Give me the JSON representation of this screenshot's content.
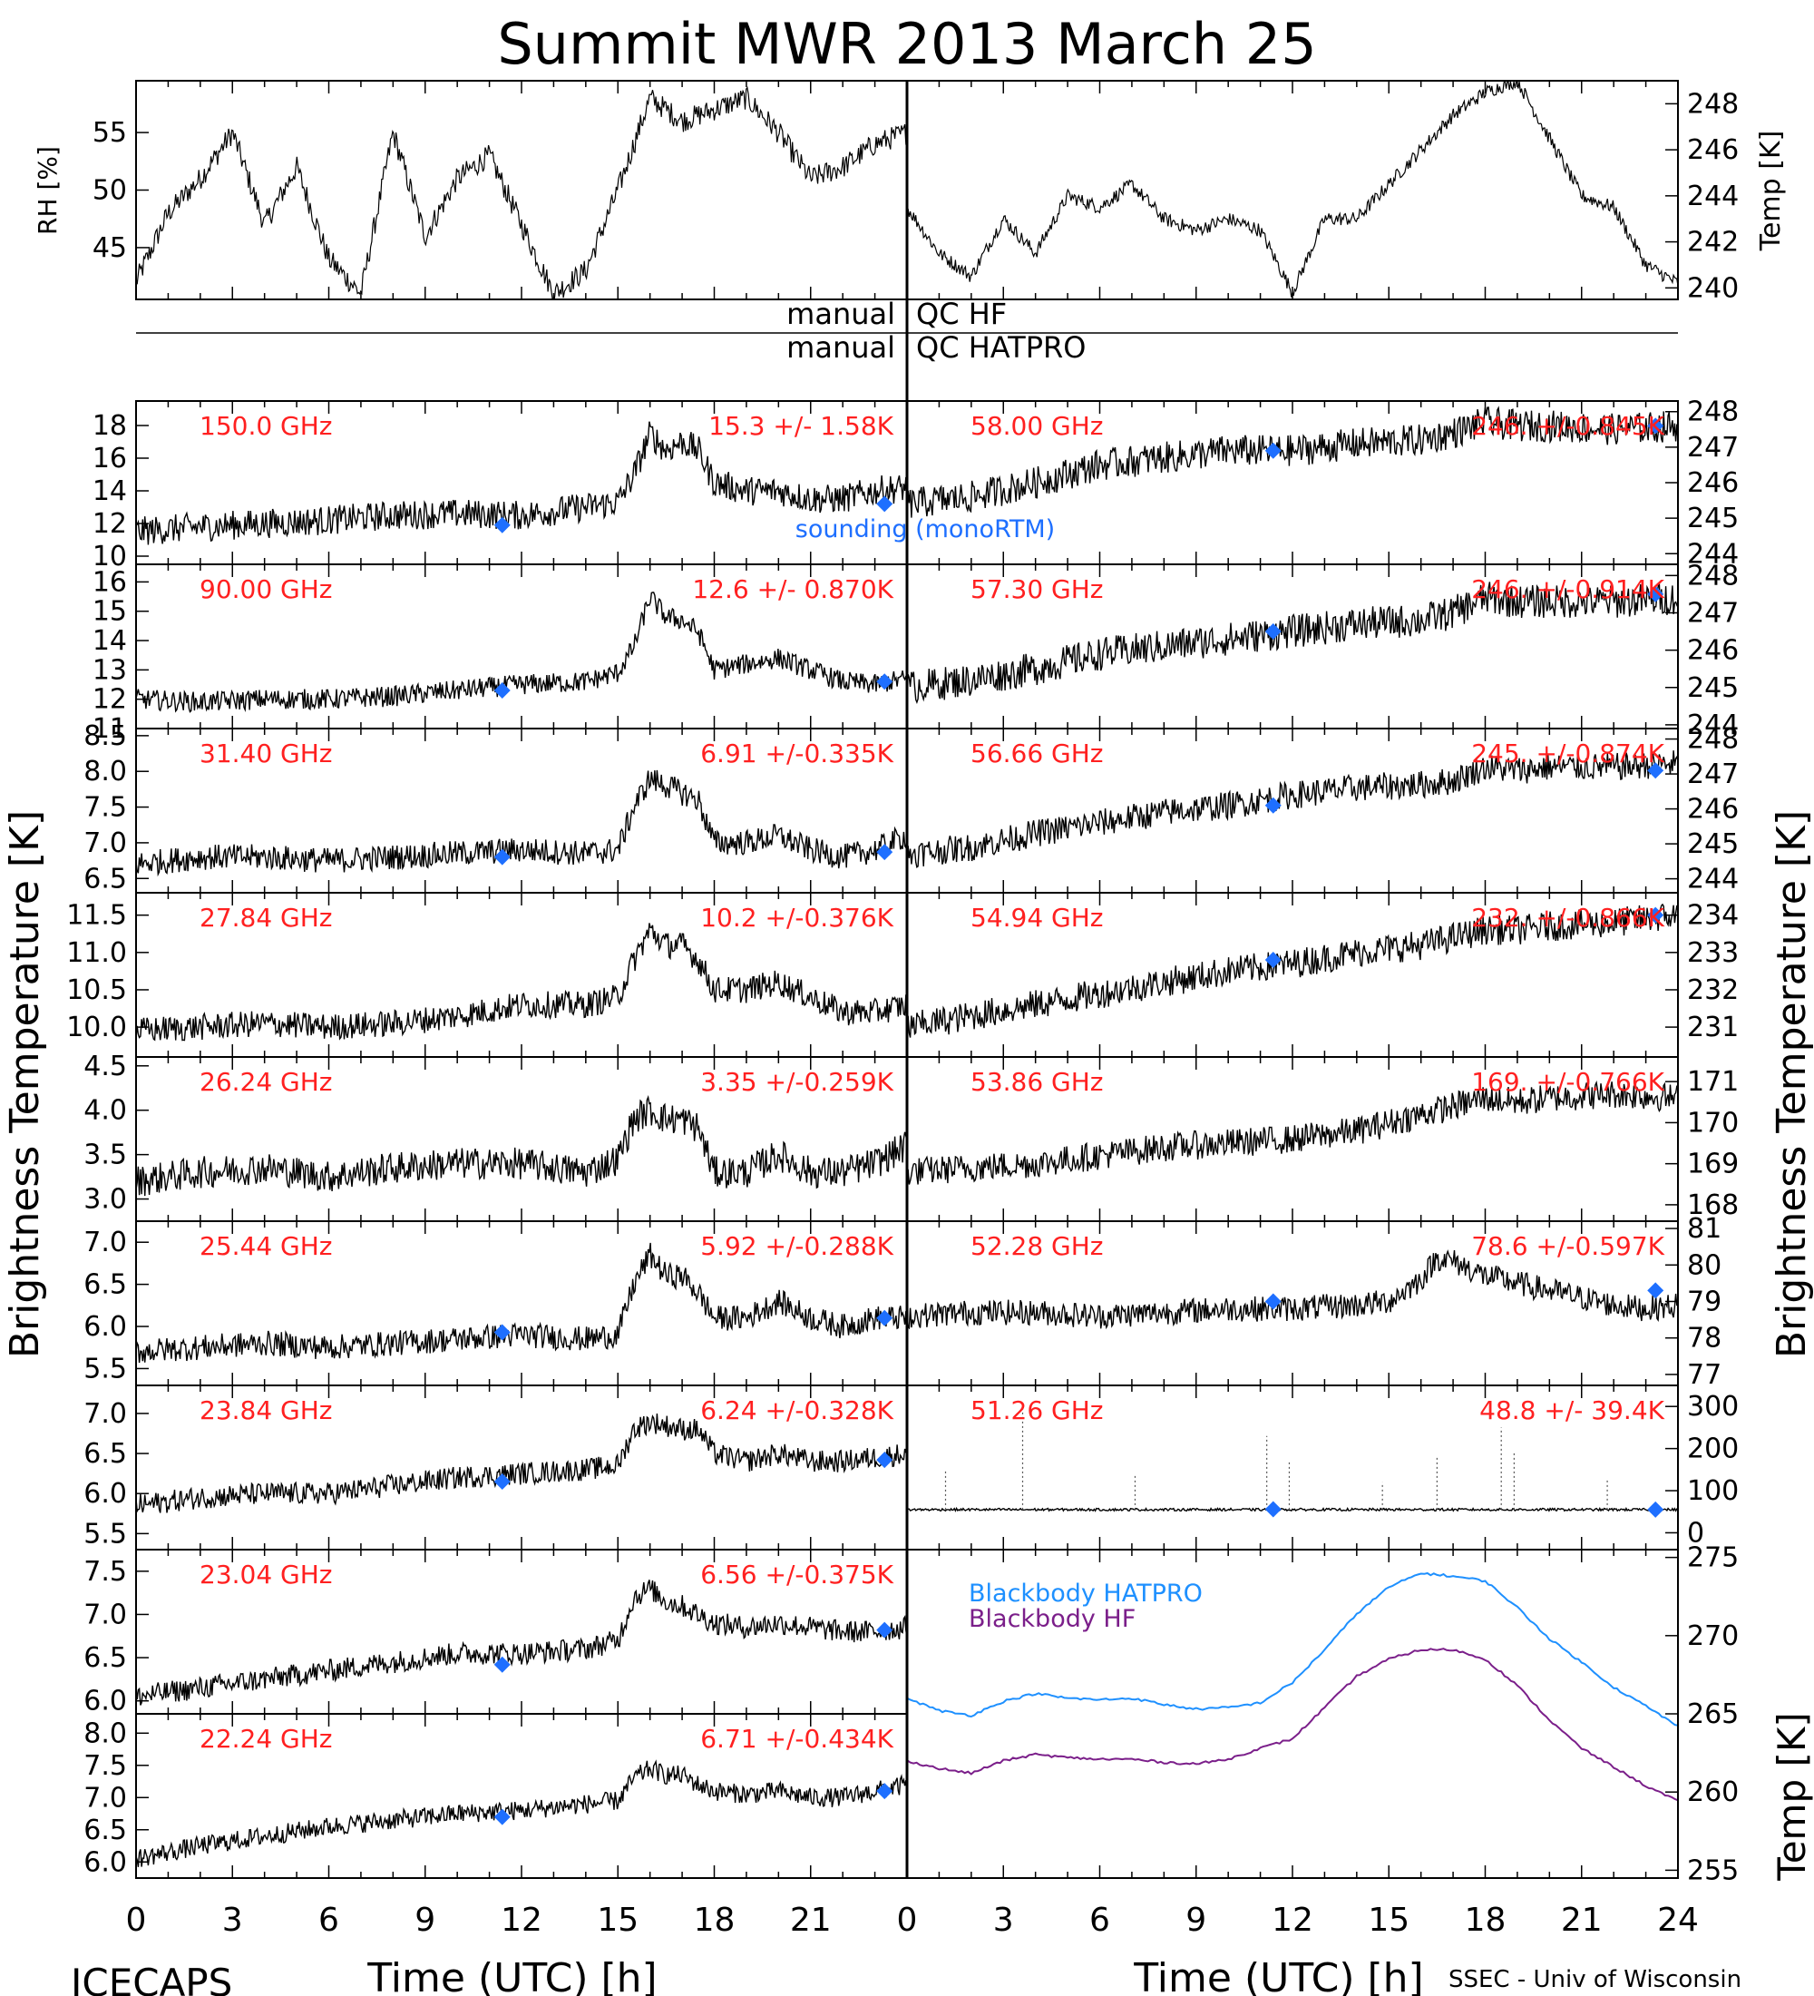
{
  "title": "Summit MWR 2013 March 25",
  "footer": {
    "left": "ICECAPS",
    "right": "SSEC - Univ of Wisconsin"
  },
  "x_axis": {
    "label": "Time (UTC) [h]",
    "ticks": [
      "0",
      "3",
      "6",
      "9",
      "12",
      "15",
      "18",
      "21",
      "24"
    ],
    "range": [
      0,
      24
    ]
  },
  "qc": {
    "label_left": "manual",
    "label_hf": "QC HF",
    "label_hatpro": "QC HATPRO"
  },
  "left_axis_label": "Brightness Temperature [K]",
  "right_axis_label": "Brightness Temperature [K]",
  "bb_axis_label": "Temp [K]",
  "sounding_label": "sounding (monoRTM)",
  "colors": {
    "text_red": "#ff2020",
    "sounding": "#1e6fff",
    "bb_hatpro": "#1e90ff",
    "bb_hf": "#7b1f8a",
    "trace": "#000000"
  },
  "chart_data": [
    {
      "type": "line",
      "id": "met_rh",
      "ylabel": "RH [%]",
      "yticks": [
        "45",
        "50",
        "55"
      ],
      "ylim": [
        40.5,
        59.5
      ],
      "x": [
        0,
        1,
        2,
        3,
        4,
        5,
        6,
        7,
        8,
        9,
        10,
        11,
        12,
        13,
        14,
        15,
        16,
        17,
        18,
        19,
        20,
        21,
        22,
        23,
        24
      ],
      "values": [
        42,
        48,
        51,
        55,
        47,
        52,
        44,
        41,
        55,
        46,
        51,
        53,
        47,
        41,
        43,
        50,
        58,
        56,
        57,
        58,
        55,
        51,
        52,
        54,
        55
      ]
    },
    {
      "type": "line",
      "id": "met_temp",
      "ylabel": "Temp [K]",
      "yticks": [
        "240",
        "242",
        "244",
        "246",
        "248"
      ],
      "ylim": [
        239.5,
        249.0
      ],
      "x": [
        0,
        1,
        2,
        3,
        4,
        5,
        6,
        7,
        8,
        9,
        10,
        11,
        12,
        13,
        14,
        15,
        16,
        17,
        18,
        19,
        20,
        21,
        22,
        23,
        24
      ],
      "values": [
        243.5,
        241.5,
        240.5,
        243,
        241.5,
        244,
        243.5,
        244.5,
        243,
        242.5,
        243,
        242.5,
        239.8,
        243,
        243,
        244.5,
        246,
        247.5,
        248.5,
        249,
        246.5,
        244,
        243.5,
        241,
        240.2
      ]
    },
    {
      "type": "line",
      "id": "l150",
      "side": "left",
      "freq": "150.0 GHz",
      "stat": "15.3 +/- 1.58K",
      "yticks": [
        "10",
        "12",
        "14",
        "16",
        "18"
      ],
      "ylim": [
        9.5,
        19.5
      ],
      "noise": 0.9,
      "x": [
        0,
        2,
        4,
        6,
        8,
        10,
        12,
        14,
        15,
        15.5,
        16,
        16.5,
        17,
        17.5,
        18,
        19,
        20,
        21,
        22,
        23,
        24
      ],
      "values": [
        11.5,
        11.8,
        12,
        12.2,
        12.5,
        12.6,
        12.5,
        13,
        13.3,
        15,
        17.5,
        16.5,
        17,
        16.5,
        14.5,
        14,
        14,
        13.5,
        13.5,
        14,
        14.2
      ],
      "sounding": [
        [
          11.4,
          11.9
        ],
        [
          23.3,
          13.2
        ]
      ]
    },
    {
      "type": "line",
      "id": "l90",
      "side": "left",
      "freq": "90.00 GHz",
      "stat": "12.6 +/- 0.870K",
      "yticks": [
        "11",
        "12",
        "13",
        "14",
        "15",
        "16"
      ],
      "ylim": [
        11.0,
        16.6
      ],
      "noise": 0.35,
      "x": [
        0,
        2,
        4,
        6,
        8,
        10,
        12,
        14,
        15,
        15.5,
        16,
        16.5,
        17,
        17.5,
        18,
        19,
        20,
        21,
        22,
        23,
        24
      ],
      "values": [
        12,
        11.9,
        12,
        12,
        12.1,
        12.3,
        12.5,
        12.6,
        12.9,
        13.8,
        15.5,
        14.8,
        14.7,
        14.3,
        13,
        13.2,
        13.4,
        13,
        12.6,
        12.5,
        12.7
      ],
      "sounding": [
        [
          11.4,
          12.3
        ],
        [
          23.3,
          12.6
        ]
      ]
    },
    {
      "type": "line",
      "id": "l3140",
      "side": "left",
      "freq": "31.40 GHz",
      "stat": "6.91 +/-0.335K",
      "yticks": [
        "6.5",
        "7.0",
        "7.5",
        "8.0",
        "8.5"
      ],
      "ylim": [
        6.3,
        8.6
      ],
      "noise": 0.18,
      "x": [
        0,
        2,
        4,
        6,
        8,
        10,
        12,
        14,
        15,
        15.5,
        16,
        16.5,
        17,
        17.5,
        18,
        19,
        20,
        21,
        22,
        23,
        24
      ],
      "values": [
        6.7,
        6.8,
        6.8,
        6.75,
        6.8,
        6.85,
        6.9,
        6.85,
        6.9,
        7.5,
        7.9,
        7.8,
        7.7,
        7.6,
        7.0,
        7.0,
        7.1,
        6.9,
        6.8,
        6.9,
        7.1
      ],
      "sounding": [
        [
          11.4,
          6.8
        ],
        [
          23.3,
          6.87
        ]
      ]
    },
    {
      "type": "line",
      "id": "l2784",
      "side": "left",
      "freq": "27.84 GHz",
      "stat": "10.2 +/-0.376K",
      "yticks": [
        "10.0",
        "10.5",
        "11.0",
        "11.5"
      ],
      "ylim": [
        9.6,
        11.8
      ],
      "noise": 0.18,
      "x": [
        0,
        2,
        4,
        6,
        8,
        10,
        12,
        14,
        15,
        15.5,
        16,
        16.5,
        17,
        17.5,
        18,
        19,
        20,
        21,
        22,
        23,
        24
      ],
      "values": [
        9.95,
        10,
        10.05,
        10,
        10.05,
        10.15,
        10.3,
        10.3,
        10.4,
        10.9,
        11.3,
        11.1,
        11.1,
        10.9,
        10.5,
        10.5,
        10.6,
        10.4,
        10.2,
        10.2,
        10.3
      ],
      "sounding": []
    },
    {
      "type": "line",
      "id": "l2624",
      "side": "left",
      "freq": "26.24 GHz",
      "stat": "3.35 +/-0.259K",
      "yticks": [
        "3.0",
        "3.5",
        "4.0",
        "4.5"
      ],
      "ylim": [
        2.75,
        4.6
      ],
      "noise": 0.18,
      "x": [
        0,
        2,
        4,
        6,
        8,
        10,
        12,
        14,
        15,
        15.5,
        16,
        16.5,
        17,
        17.5,
        18,
        19,
        20,
        21,
        22,
        23,
        24
      ],
      "values": [
        3.2,
        3.3,
        3.35,
        3.25,
        3.35,
        3.4,
        3.4,
        3.3,
        3.45,
        3.9,
        4.0,
        3.9,
        3.9,
        3.8,
        3.3,
        3.3,
        3.5,
        3.3,
        3.3,
        3.4,
        3.6
      ],
      "sounding": []
    },
    {
      "type": "line",
      "id": "l2544",
      "side": "left",
      "freq": "25.44 GHz",
      "stat": "5.92 +/-0.288K",
      "yticks": [
        "5.5",
        "6.0",
        "6.5",
        "7.0"
      ],
      "ylim": [
        5.3,
        7.25
      ],
      "noise": 0.15,
      "x": [
        0,
        2,
        4,
        6,
        8,
        10,
        12,
        14,
        15,
        15.5,
        16,
        16.5,
        17,
        17.5,
        18,
        19,
        20,
        21,
        22,
        23,
        24
      ],
      "values": [
        5.7,
        5.75,
        5.8,
        5.75,
        5.8,
        5.85,
        5.9,
        5.85,
        5.9,
        6.5,
        6.85,
        6.6,
        6.6,
        6.4,
        6.1,
        6.1,
        6.3,
        6.1,
        6.0,
        6.1,
        6.1
      ],
      "sounding": [
        [
          11.4,
          5.93
        ],
        [
          23.3,
          6.1
        ]
      ]
    },
    {
      "type": "line",
      "id": "l2384",
      "side": "left",
      "freq": "23.84 GHz",
      "stat": "6.24 +/-0.328K",
      "yticks": [
        "5.5",
        "6.0",
        "6.5",
        "7.0"
      ],
      "ylim": [
        5.3,
        7.35
      ],
      "noise": 0.14,
      "x": [
        0,
        2,
        4,
        6,
        8,
        10,
        12,
        14,
        15,
        15.5,
        16,
        16.5,
        17,
        17.5,
        18,
        19,
        20,
        21,
        22,
        23,
        24
      ],
      "values": [
        5.85,
        5.95,
        6.0,
        6.0,
        6.1,
        6.2,
        6.25,
        6.3,
        6.35,
        6.8,
        6.9,
        6.85,
        6.8,
        6.8,
        6.5,
        6.4,
        6.5,
        6.4,
        6.4,
        6.45,
        6.5
      ],
      "sounding": [
        [
          11.4,
          6.15
        ],
        [
          23.3,
          6.42
        ]
      ]
    },
    {
      "type": "line",
      "id": "l2304",
      "side": "left",
      "freq": "23.04 GHz",
      "stat": "6.56 +/-0.375K",
      "yticks": [
        "6.0",
        "6.5",
        "7.0",
        "7.5"
      ],
      "ylim": [
        5.85,
        7.75
      ],
      "noise": 0.13,
      "x": [
        0,
        2,
        4,
        6,
        8,
        10,
        12,
        14,
        15,
        15.5,
        16,
        16.5,
        17,
        17.5,
        18,
        19,
        20,
        21,
        22,
        23,
        24
      ],
      "values": [
        6.05,
        6.15,
        6.25,
        6.35,
        6.45,
        6.55,
        6.55,
        6.6,
        6.7,
        7.2,
        7.3,
        7.15,
        7.1,
        7.0,
        6.9,
        6.85,
        6.9,
        6.85,
        6.8,
        6.8,
        6.85
      ],
      "sounding": [
        [
          11.4,
          6.42
        ],
        [
          23.3,
          6.82
        ]
      ]
    },
    {
      "type": "line",
      "id": "l2224",
      "side": "left",
      "freq": "22.24 GHz",
      "stat": "6.71 +/-0.434K",
      "yticks": [
        "6.0",
        "6.5",
        "7.0",
        "7.5",
        "8.0"
      ],
      "ylim": [
        5.75,
        8.3
      ],
      "noise": 0.15,
      "x": [
        0,
        2,
        4,
        6,
        8,
        10,
        12,
        14,
        15,
        15.5,
        16,
        16.5,
        17,
        17.5,
        18,
        19,
        20,
        21,
        22,
        23,
        24
      ],
      "values": [
        6.05,
        6.25,
        6.4,
        6.55,
        6.65,
        6.75,
        6.8,
        6.9,
        6.95,
        7.3,
        7.45,
        7.35,
        7.35,
        7.2,
        7.1,
        7.05,
        7.1,
        7.0,
        7.0,
        7.1,
        7.2
      ],
      "sounding": [
        [
          11.4,
          6.7
        ],
        [
          23.3,
          7.1
        ]
      ]
    },
    {
      "type": "line",
      "id": "r5800",
      "side": "right",
      "freq": "58.00 GHz",
      "stat": "246. +/-0.845K",
      "yticks": [
        "244",
        "245",
        "246",
        "247",
        "248"
      ],
      "ylim": [
        243.7,
        248.3
      ],
      "noise": 0.45,
      "x": [
        0,
        2,
        4,
        6,
        8,
        10,
        12,
        14,
        16,
        17,
        18,
        19,
        20,
        22,
        24
      ],
      "values": [
        245.4,
        245.6,
        246.0,
        246.5,
        246.7,
        246.9,
        246.9,
        247.1,
        247.2,
        247.4,
        247.7,
        247.6,
        247.6,
        247.5,
        247.6
      ],
      "sounding": [
        [
          11.4,
          246.9
        ],
        [
          23.3,
          247.6
        ]
      ]
    },
    {
      "type": "line",
      "id": "r5730",
      "side": "right",
      "freq": "57.30 GHz",
      "stat": "246. +/-0.914K",
      "yticks": [
        "244",
        "245",
        "246",
        "247",
        "248"
      ],
      "ylim": [
        243.9,
        248.3
      ],
      "noise": 0.45,
      "x": [
        0,
        2,
        4,
        6,
        8,
        10,
        12,
        14,
        16,
        17,
        18,
        19,
        20,
        22,
        24
      ],
      "values": [
        245.0,
        245.2,
        245.5,
        245.9,
        246.1,
        246.3,
        246.5,
        246.7,
        246.8,
        247.0,
        247.4,
        247.3,
        247.3,
        247.3,
        247.4
      ],
      "sounding": [
        [
          11.4,
          246.5
        ],
        [
          23.3,
          247.5
        ]
      ]
    },
    {
      "type": "line",
      "id": "r5666",
      "side": "right",
      "freq": "56.66 GHz",
      "stat": "245. +/-0.874K",
      "yticks": [
        "244",
        "245",
        "246",
        "247",
        "248"
      ],
      "ylim": [
        243.6,
        248.3
      ],
      "noise": 0.4,
      "x": [
        0,
        2,
        4,
        6,
        8,
        10,
        12,
        14,
        16,
        17,
        18,
        19,
        20,
        22,
        24
      ],
      "values": [
        244.7,
        244.9,
        245.3,
        245.6,
        245.9,
        246.1,
        246.4,
        246.6,
        246.7,
        246.8,
        247.2,
        247.1,
        247.2,
        247.2,
        247.3
      ],
      "sounding": [
        [
          11.4,
          246.1
        ],
        [
          23.3,
          247.1
        ]
      ]
    },
    {
      "type": "line",
      "id": "r5494",
      "side": "right",
      "freq": "54.94 GHz",
      "stat": "232. +/-0.866K",
      "yticks": [
        "231",
        "232",
        "233",
        "234"
      ],
      "ylim": [
        230.2,
        234.6
      ],
      "noise": 0.4,
      "x": [
        0,
        2,
        4,
        6,
        8,
        10,
        12,
        14,
        16,
        17,
        18,
        19,
        20,
        22,
        24
      ],
      "values": [
        231.0,
        231.3,
        231.6,
        231.9,
        232.2,
        232.5,
        232.7,
        233.0,
        233.2,
        233.4,
        233.6,
        233.6,
        233.7,
        233.8,
        234.0
      ],
      "sounding": [
        [
          11.4,
          232.8
        ],
        [
          23.3,
          234.0
        ]
      ]
    },
    {
      "type": "line",
      "id": "r5386",
      "side": "right",
      "freq": "53.86 GHz",
      "stat": "169. +/-0.766K",
      "yticks": [
        "168",
        "169",
        "170",
        "171"
      ],
      "ylim": [
        167.6,
        171.6
      ],
      "noise": 0.35,
      "x": [
        0,
        2,
        4,
        6,
        8,
        10,
        12,
        14,
        16,
        17,
        18,
        19,
        20,
        22,
        24
      ],
      "values": [
        168.8,
        168.9,
        169.0,
        169.2,
        169.4,
        169.5,
        169.6,
        169.8,
        170.2,
        170.4,
        170.6,
        170.5,
        170.6,
        170.7,
        170.6
      ],
      "sounding": []
    },
    {
      "type": "line",
      "id": "r5228",
      "side": "right",
      "freq": "52.28 GHz",
      "stat": "78.6 +/-0.597K",
      "yticks": [
        "77",
        "78",
        "79",
        "80",
        "81"
      ],
      "ylim": [
        76.7,
        81.2
      ],
      "noise": 0.35,
      "x": [
        0,
        2,
        4,
        6,
        8,
        10,
        12,
        14,
        15,
        16,
        16.5,
        17,
        18,
        19,
        20,
        21,
        22,
        23,
        24
      ],
      "values": [
        78.6,
        78.7,
        78.7,
        78.6,
        78.7,
        78.8,
        78.8,
        78.9,
        79.0,
        79.6,
        80.2,
        80.1,
        79.7,
        79.5,
        79.3,
        79.1,
        78.9,
        78.8,
        78.9
      ],
      "sounding": [
        [
          11.4,
          79.0
        ],
        [
          23.3,
          79.3
        ]
      ]
    },
    {
      "type": "line",
      "id": "r5126",
      "side": "right",
      "freq": "51.26 GHz",
      "stat": "48.8 +/- 39.4K",
      "yticks": [
        "0",
        "100",
        "200",
        "300"
      ],
      "ylim": [
        -40,
        350
      ],
      "noise": 3,
      "x": [
        0,
        24
      ],
      "values": [
        55,
        55
      ],
      "spikes": [
        [
          1.2,
          150
        ],
        [
          3.6,
          300
        ],
        [
          7.1,
          140
        ],
        [
          11.2,
          230
        ],
        [
          11.9,
          170
        ],
        [
          14.8,
          120
        ],
        [
          16.5,
          180
        ],
        [
          18.5,
          250
        ],
        [
          18.9,
          190
        ],
        [
          21.8,
          130
        ]
      ],
      "sounding": [
        [
          11.4,
          56
        ],
        [
          23.3,
          55
        ]
      ]
    },
    {
      "type": "line",
      "id": "blackbody",
      "side": "right",
      "ylabel": "Temp [K]",
      "yticks": [
        "255",
        "260",
        "265",
        "270",
        "275"
      ],
      "ylim": [
        254.5,
        275.5
      ],
      "x": [
        0,
        1,
        2,
        3,
        4,
        5,
        6,
        7,
        8,
        9,
        10,
        11,
        12,
        13,
        14,
        15,
        16,
        17,
        18,
        19,
        20,
        21,
        22,
        23,
        24
      ],
      "series": [
        {
          "name": "Blackbody HATPRO",
          "values": [
            266.0,
            265.2,
            264.9,
            265.8,
            266.3,
            266.0,
            265.9,
            266.0,
            265.6,
            265.3,
            265.4,
            265.7,
            267.0,
            269.1,
            271.4,
            273.1,
            274.0,
            273.8,
            273.5,
            271.8,
            269.8,
            268.3,
            266.7,
            265.5,
            264.2
          ]
        },
        {
          "name": "Blackbody HF",
          "values": [
            262.0,
            261.5,
            261.2,
            262.0,
            262.4,
            262.2,
            262.1,
            262.1,
            261.9,
            261.8,
            262.1,
            262.8,
            263.4,
            265.4,
            267.4,
            268.5,
            269.1,
            269.1,
            268.5,
            266.8,
            264.6,
            262.8,
            261.6,
            260.4,
            259.4
          ]
        }
      ]
    }
  ]
}
